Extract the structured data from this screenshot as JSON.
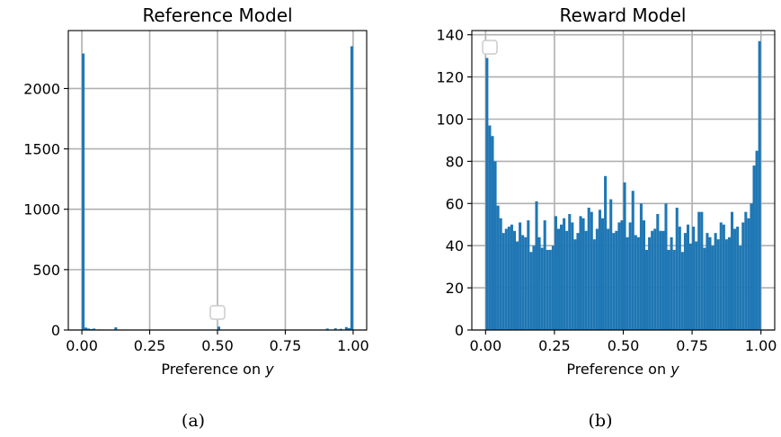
{
  "chart_data": [
    {
      "type": "bar",
      "title": "Reference Model",
      "xlabel": "Preference on",
      "xlabel_var": "y",
      "caption": "(a)",
      "xlim": [
        -0.05,
        1.05
      ],
      "ylim": [
        0,
        2480
      ],
      "xticks": [
        0.0,
        0.25,
        0.5,
        0.75,
        1.0
      ],
      "xtick_labels": [
        "0.00",
        "0.25",
        "0.50",
        "0.75",
        "1.00"
      ],
      "yticks": [
        0,
        500,
        1000,
        1500,
        2000
      ],
      "ytick_labels": [
        "0",
        "500",
        "1000",
        "1500",
        "2000"
      ],
      "grid": true,
      "bin_width": 0.01,
      "bins": [
        {
          "x": 0.0,
          "y": 2290
        },
        {
          "x": 0.01,
          "y": 20
        },
        {
          "x": 0.02,
          "y": 12
        },
        {
          "x": 0.03,
          "y": 8
        },
        {
          "x": 0.04,
          "y": 12
        },
        {
          "x": 0.06,
          "y": 5
        },
        {
          "x": 0.08,
          "y": 4
        },
        {
          "x": 0.12,
          "y": 22
        },
        {
          "x": 0.15,
          "y": 4
        },
        {
          "x": 0.2,
          "y": 3
        },
        {
          "x": 0.28,
          "y": 3
        },
        {
          "x": 0.33,
          "y": 3
        },
        {
          "x": 0.4,
          "y": 3
        },
        {
          "x": 0.45,
          "y": 3
        },
        {
          "x": 0.5,
          "y": 28
        },
        {
          "x": 0.55,
          "y": 4
        },
        {
          "x": 0.62,
          "y": 3
        },
        {
          "x": 0.7,
          "y": 3
        },
        {
          "x": 0.77,
          "y": 3
        },
        {
          "x": 0.84,
          "y": 4
        },
        {
          "x": 0.9,
          "y": 12
        },
        {
          "x": 0.93,
          "y": 14
        },
        {
          "x": 0.95,
          "y": 10
        },
        {
          "x": 0.97,
          "y": 24
        },
        {
          "x": 0.98,
          "y": 16
        },
        {
          "x": 0.99,
          "y": 2350
        }
      ]
    },
    {
      "type": "bar",
      "title": "Reward Model",
      "xlabel": "Preference on",
      "xlabel_var": "y",
      "caption": "(b)",
      "xlim": [
        -0.05,
        1.05
      ],
      "ylim": [
        0,
        142
      ],
      "xticks": [
        0.0,
        0.25,
        0.5,
        0.75,
        1.0
      ],
      "xtick_labels": [
        "0.00",
        "0.25",
        "0.50",
        "0.75",
        "1.00"
      ],
      "yticks": [
        0,
        20,
        40,
        60,
        80,
        100,
        120,
        140
      ],
      "ytick_labels": [
        "0",
        "20",
        "40",
        "60",
        "80",
        "100",
        "120",
        "140"
      ],
      "grid": true,
      "bin_width": 0.01,
      "values": [
        129,
        97,
        92,
        80,
        59,
        53,
        46,
        48,
        49,
        50,
        47,
        42,
        51,
        45,
        44,
        52,
        37,
        40,
        61,
        44,
        39,
        52,
        38,
        38,
        40,
        54,
        48,
        50,
        53,
        47,
        55,
        51,
        43,
        46,
        54,
        53,
        47,
        58,
        56,
        43,
        48,
        57,
        53,
        73,
        48,
        62,
        46,
        47,
        51,
        52,
        70,
        44,
        51,
        66,
        45,
        44,
        60,
        52,
        38,
        44,
        47,
        48,
        55,
        47,
        47,
        60,
        38,
        44,
        38,
        58,
        49,
        37,
        46,
        50,
        41,
        49,
        42,
        56,
        56,
        39,
        46,
        44,
        40,
        46,
        43,
        51,
        50,
        43,
        44,
        56,
        48,
        49,
        40,
        51,
        56,
        53,
        60,
        78,
        85,
        137
      ]
    }
  ]
}
